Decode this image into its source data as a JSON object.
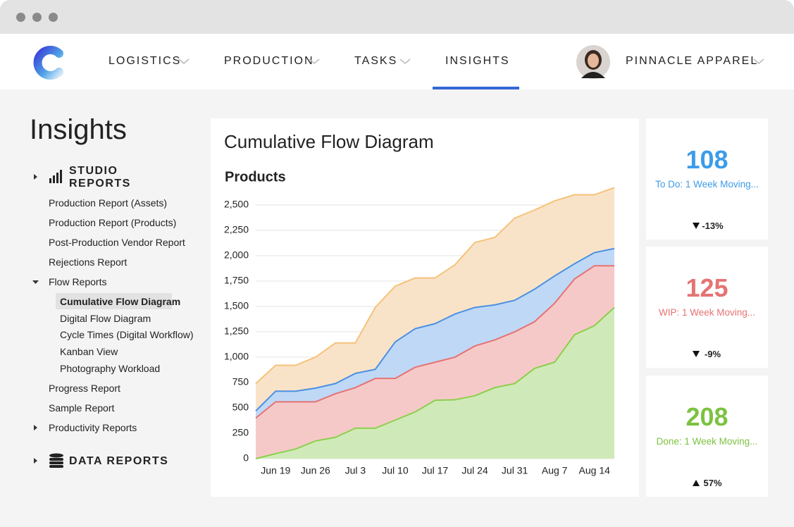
{
  "nav": {
    "items": [
      "LOGISTICS",
      "PRODUCTION",
      "TASKS",
      "INSIGHTS"
    ],
    "account": "PINNACLE APPAREL"
  },
  "sidebar": {
    "title": "Insights",
    "studio": {
      "title": "STUDIO REPORTS",
      "items": [
        "Production Report (Assets)",
        "Production Report (Products)",
        "Post-Production Vendor Report",
        "Rejections Report"
      ],
      "flow": {
        "title": "Flow Reports",
        "items": [
          "Cumulative Flow Diagram",
          "Digital Flow Diagram",
          "Cycle Times (Digital Workflow)",
          "Kanban View",
          "Photography Workload"
        ]
      },
      "more": [
        "Progress Report",
        "Sample Report"
      ],
      "productivity": "Productivity Reports"
    },
    "data": {
      "title": "DATA REPORTS"
    }
  },
  "chart_data": {
    "type": "stacked_area",
    "title": "Cumulative Flow Diagram",
    "subtitle": "Products",
    "categories": [
      null,
      "Jun 19",
      null,
      "Jun 26",
      null,
      "Jul 3",
      null,
      "Jul 10",
      null,
      "Jul 17",
      null,
      "Jul 24",
      null,
      "Jul 31",
      null,
      "Aug 7",
      null,
      "Aug 14",
      null
    ],
    "series": [
      {
        "color": "#8ccf4d",
        "fill": "#cfeab8",
        "values": [
          0,
          50,
          95,
          175,
          210,
          300,
          300,
          380,
          460,
          575,
          580,
          620,
          700,
          740,
          890,
          950,
          1220,
          1310,
          1490
        ]
      },
      {
        "color": "#e57373",
        "fill": "#f6c9c9",
        "values": [
          400,
          510,
          465,
          385,
          430,
          400,
          490,
          410,
          440,
          375,
          420,
          490,
          470,
          510,
          460,
          580,
          550,
          590,
          410
        ]
      },
      {
        "color": "#4a90e2",
        "fill": "#bfd8f6",
        "values": [
          70,
          105,
          105,
          135,
          100,
          140,
          90,
          360,
          380,
          380,
          425,
          380,
          345,
          310,
          320,
          270,
          150,
          130,
          170
        ]
      },
      {
        "color": "#f5c27a",
        "fill": "#f9e3c8",
        "values": [
          270,
          255,
          255,
          305,
          400,
          300,
          610,
          550,
          500,
          450,
          485,
          640,
          665,
          810,
          780,
          740,
          680,
          570,
          600
        ]
      }
    ],
    "ylim": [
      0,
      2700
    ],
    "yticks": [
      0,
      250,
      500,
      750,
      {
        "value": 1000,
        "label": "1,000"
      },
      {
        "value": 1250,
        "label": "1,250"
      },
      {
        "value": 1500,
        "label": "1,500"
      },
      {
        "value": 1750,
        "label": "1,750"
      },
      {
        "value": 2000,
        "label": "2,000"
      },
      {
        "value": 2250,
        "label": "2,250"
      },
      {
        "value": 2500,
        "label": "2,500"
      }
    ],
    "grid": true
  },
  "kpis": [
    {
      "value": 108,
      "label": "To Do: 1 Week Moving...",
      "change": "-13%",
      "color": "#3d9be9"
    },
    {
      "value": 125,
      "label": "WIP: 1 Week Moving...",
      "change": "-9%",
      "color": "#e57373"
    },
    {
      "value": 208,
      "label": "Done: 1 Week Moving...",
      "change": "57%",
      "color": "#7cc242"
    }
  ]
}
